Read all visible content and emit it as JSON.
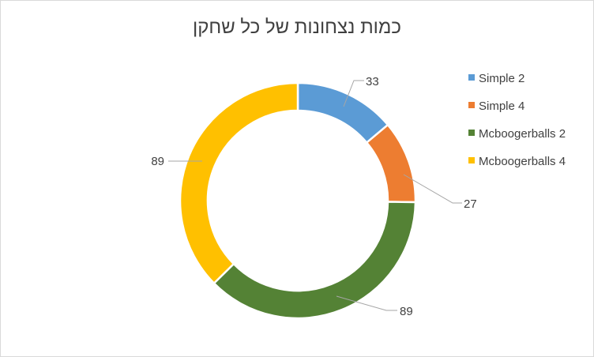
{
  "chart_data": {
    "type": "pie",
    "variant": "doughnut",
    "title": "כמות נצחונות של כל שחקן",
    "categories": [
      "Simple 2",
      "Simple 4",
      "Mcboogerballs 2",
      "Mcboogerballs 4"
    ],
    "values": [
      33,
      27,
      89,
      89
    ],
    "colors": [
      "#5b9bd5",
      "#ed7d31",
      "#548235",
      "#ffc000"
    ],
    "data_labels": [
      "33",
      "27",
      "89",
      "89"
    ],
    "legend_position": "right",
    "start_angle_deg": 0,
    "direction": "clockwise"
  }
}
